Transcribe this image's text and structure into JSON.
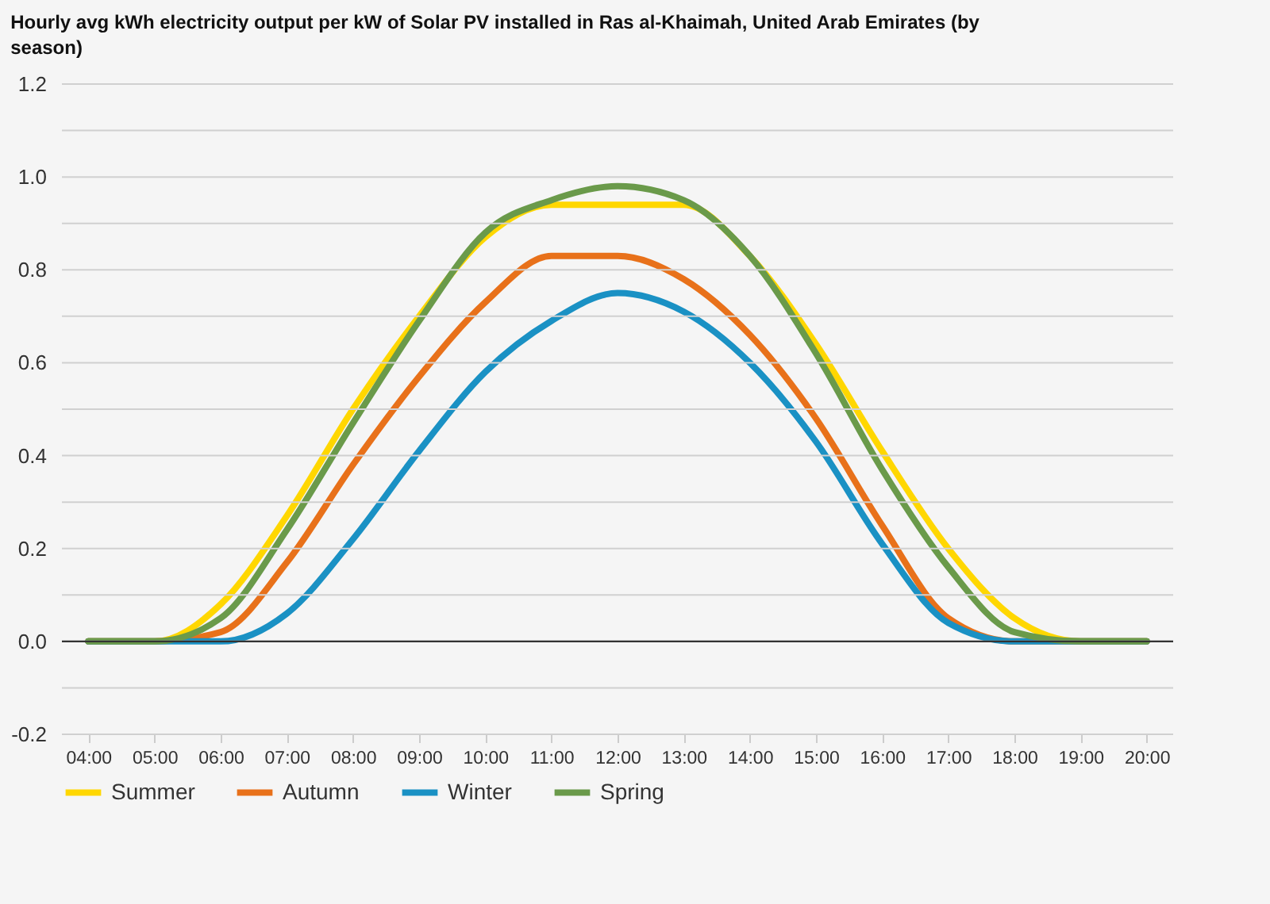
{
  "chart_data": {
    "type": "line",
    "title": "Hourly avg kWh electricity output per kW of Solar PV installed in Ras al-Khaimah, United Arab Emirates (by season)",
    "x": [
      4,
      5,
      6,
      7,
      8,
      9,
      10,
      11,
      12,
      13,
      14,
      15,
      16,
      17,
      18,
      19,
      20
    ],
    "series": [
      {
        "name": "Summer",
        "color": "#ffd700",
        "values": [
          0,
          0,
          0.08,
          0.27,
          0.5,
          0.7,
          0.87,
          0.94,
          0.94,
          0.94,
          0.83,
          0.64,
          0.41,
          0.2,
          0.05,
          0,
          0
        ]
      },
      {
        "name": "Autumn",
        "color": "#e8711a",
        "values": [
          0,
          0,
          0.02,
          0.17,
          0.38,
          0.57,
          0.73,
          0.83,
          0.83,
          0.78,
          0.66,
          0.48,
          0.25,
          0.05,
          0,
          0,
          0
        ]
      },
      {
        "name": "Winter",
        "color": "#1a91c4",
        "values": [
          0,
          0,
          0,
          0.06,
          0.22,
          0.41,
          0.58,
          0.69,
          0.75,
          0.71,
          0.6,
          0.43,
          0.21,
          0.04,
          0,
          0,
          0
        ]
      },
      {
        "name": "Spring",
        "color": "#6a9a4a",
        "values": [
          0,
          0,
          0.05,
          0.24,
          0.47,
          0.69,
          0.88,
          0.95,
          0.98,
          0.95,
          0.83,
          0.62,
          0.37,
          0.16,
          0.02,
          0,
          0
        ]
      }
    ],
    "xlim": [
      3.6,
      20.4
    ],
    "xticks": [
      {
        "value": 4,
        "label": "04:00"
      },
      {
        "value": 5,
        "label": "05:00"
      },
      {
        "value": 6,
        "label": "06:00"
      },
      {
        "value": 7,
        "label": "07:00"
      },
      {
        "value": 8,
        "label": "08:00"
      },
      {
        "value": 9,
        "label": "09:00"
      },
      {
        "value": 10,
        "label": "10:00"
      },
      {
        "value": 11,
        "label": "11:00"
      },
      {
        "value": 12,
        "label": "12:00"
      },
      {
        "value": 13,
        "label": "13:00"
      },
      {
        "value": 14,
        "label": "14:00"
      },
      {
        "value": 15,
        "label": "15:00"
      },
      {
        "value": 16,
        "label": "16:00"
      },
      {
        "value": 17,
        "label": "17:00"
      },
      {
        "value": 18,
        "label": "18:00"
      },
      {
        "value": 19,
        "label": "19:00"
      },
      {
        "value": 20,
        "label": "20:00"
      }
    ],
    "ylim": [
      -0.2,
      1.2
    ],
    "yticks": [
      {
        "value": -0.2,
        "label": "-0.2"
      },
      {
        "value": -0.1,
        "label": null
      },
      {
        "value": 0,
        "label": "0.0"
      },
      {
        "value": 0.1,
        "label": null
      },
      {
        "value": 0.2,
        "label": "0.2"
      },
      {
        "value": 0.3,
        "label": null
      },
      {
        "value": 0.4,
        "label": "0.4"
      },
      {
        "value": 0.5,
        "label": null
      },
      {
        "value": 0.6,
        "label": "0.6"
      },
      {
        "value": 0.7,
        "label": null
      },
      {
        "value": 0.8,
        "label": "0.8"
      },
      {
        "value": 0.9,
        "label": null
      },
      {
        "value": 1,
        "label": "1.0"
      },
      {
        "value": 1.1,
        "label": null
      },
      {
        "value": 1.2,
        "label": "1.2"
      }
    ],
    "ref_lines": [
      {
        "axis": "y",
        "value": 0,
        "color": "#333333"
      }
    ],
    "grid": "y",
    "legend": "bottom",
    "marker": "none",
    "line_style": "solid"
  }
}
